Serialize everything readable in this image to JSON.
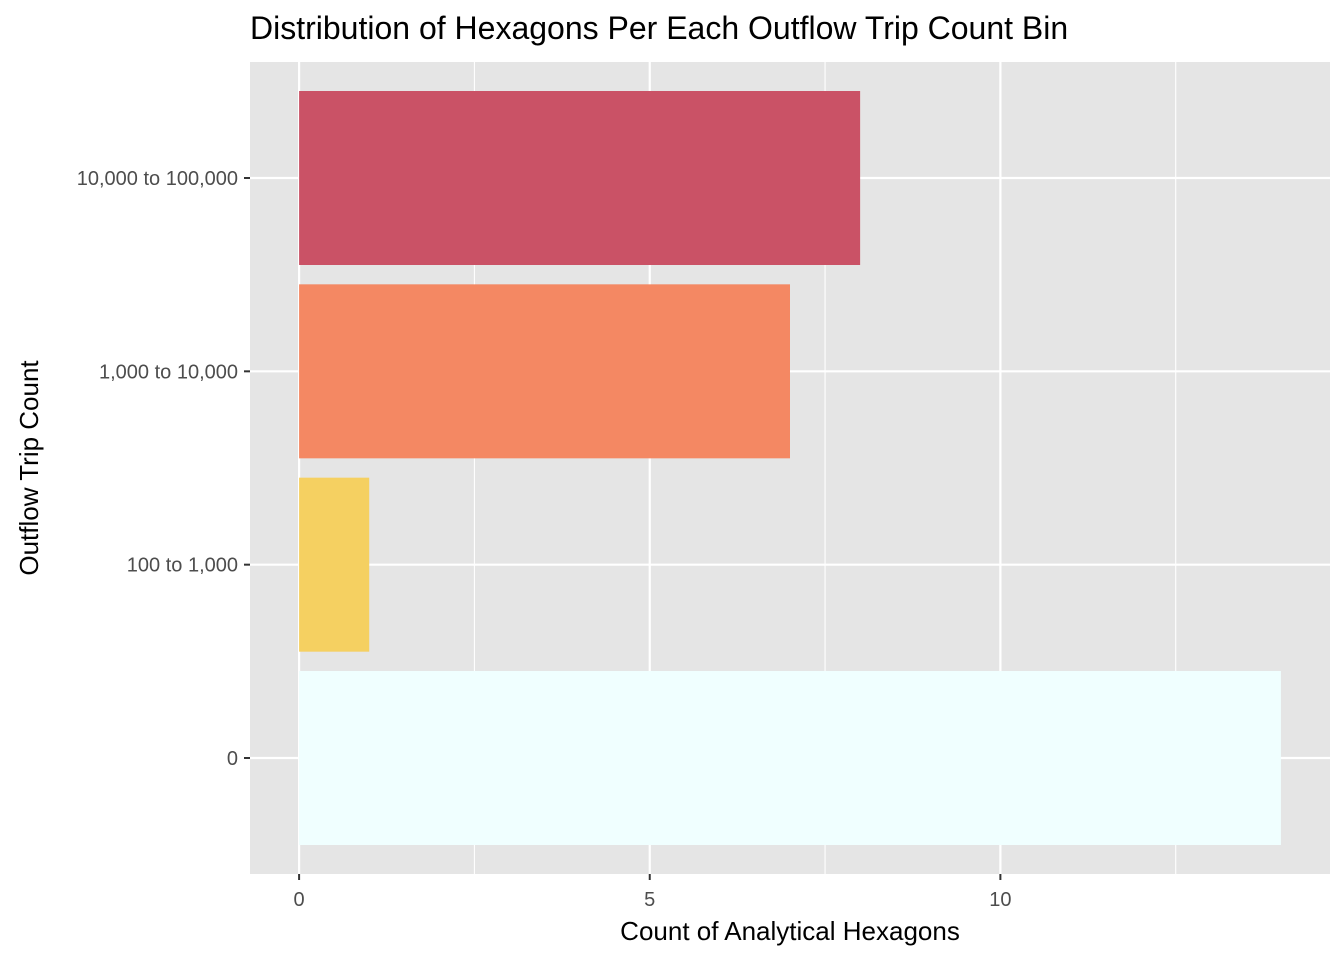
{
  "chart_data": {
    "type": "bar",
    "orientation": "horizontal",
    "title": "Distribution of Hexagons Per Each Outflow Trip Count Bin",
    "xlabel": "Count of Analytical Hexagons",
    "ylabel": "Outflow Trip Count",
    "categories": [
      "0",
      "100 to 1,000",
      "1,000 to 10,000",
      "10,000 to 100,000"
    ],
    "values": [
      14,
      1,
      7,
      8
    ],
    "colors": [
      "#F0FFFF",
      "#F5D061",
      "#F48863",
      "#CA5266"
    ],
    "xlim": [
      -0.7,
      14.7
    ],
    "x_ticks": [
      0,
      5,
      10
    ],
    "x_tick_labels": [
      "0",
      "5",
      "10"
    ],
    "background": "#E5E5E5",
    "grid": true,
    "legend": "none"
  }
}
